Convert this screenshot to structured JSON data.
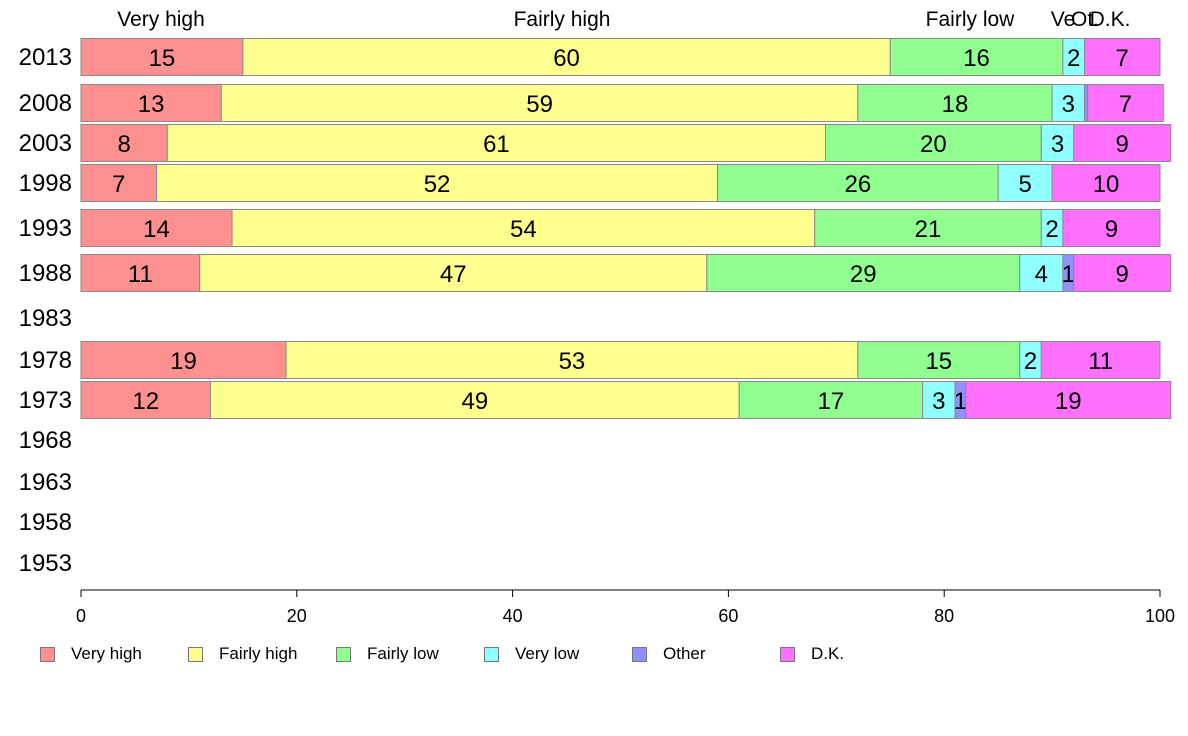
{
  "chart_data": {
    "type": "bar",
    "orientation": "horizontal",
    "stacked": true,
    "xlim": [
      0,
      100
    ],
    "xticks": [
      0,
      20,
      40,
      60,
      80,
      100
    ],
    "categories": [
      "2013",
      "2008",
      "2003",
      "1998",
      "1993",
      "1988",
      "1983",
      "1978",
      "1973",
      "1968",
      "1963",
      "1958",
      "1953"
    ],
    "series": [
      {
        "name": "Very high",
        "color": "#ff9090",
        "values": [
          15,
          13,
          8,
          7,
          14,
          11,
          null,
          19,
          12,
          null,
          null,
          null,
          null
        ]
      },
      {
        "name": "Fairly high",
        "color": "#ffff90",
        "values": [
          60,
          59,
          61,
          52,
          54,
          47,
          null,
          53,
          49,
          null,
          null,
          null,
          null
        ]
      },
      {
        "name": "Fairly low",
        "color": "#90ff90",
        "values": [
          16,
          18,
          20,
          26,
          21,
          29,
          null,
          15,
          17,
          null,
          null,
          null,
          null
        ]
      },
      {
        "name": "Very low",
        "color": "#90ffff",
        "values": [
          2,
          3,
          3,
          5,
          2,
          4,
          null,
          2,
          3,
          null,
          null,
          null,
          null
        ]
      },
      {
        "name": "Other",
        "color": "#9090ff",
        "values": [
          0,
          0.3,
          0,
          0,
          0,
          1,
          null,
          0,
          1,
          null,
          null,
          null,
          null
        ]
      },
      {
        "name": "D.K.",
        "color": "#ff70ff",
        "values": [
          7,
          7,
          9,
          10,
          9,
          9,
          null,
          11,
          19,
          null,
          null,
          null,
          null
        ]
      }
    ],
    "labels": [
      [
        "15",
        "60",
        "16",
        "2",
        "",
        "7"
      ],
      [
        "13",
        "59",
        "18",
        "3",
        "",
        "7"
      ],
      [
        "8",
        "61",
        "20",
        "3",
        "",
        "9"
      ],
      [
        "7",
        "52",
        "26",
        "5",
        "",
        "10"
      ],
      [
        "14",
        "54",
        "21",
        "2",
        "",
        "9"
      ],
      [
        "11",
        "47",
        "29",
        "4",
        "1",
        "9"
      ],
      [
        "",
        "",
        "",
        "",
        "",
        ""
      ],
      [
        "19",
        "53",
        "15",
        "2",
        "",
        "11"
      ],
      [
        "12",
        "49",
        "17",
        "3",
        "1",
        "19"
      ],
      [
        "",
        "",
        "",
        "",
        "",
        ""
      ],
      [
        "",
        "",
        "",
        "",
        "",
        ""
      ],
      [
        "",
        "",
        "",
        "",
        "",
        ""
      ],
      [
        "",
        "",
        "",
        "",
        "",
        ""
      ]
    ],
    "top_labels": [
      "Very high",
      "Fairly high",
      "Fairly low",
      "Ve",
      "Ot.",
      "D.K."
    ],
    "legend_position": "bottom",
    "grid": false
  }
}
